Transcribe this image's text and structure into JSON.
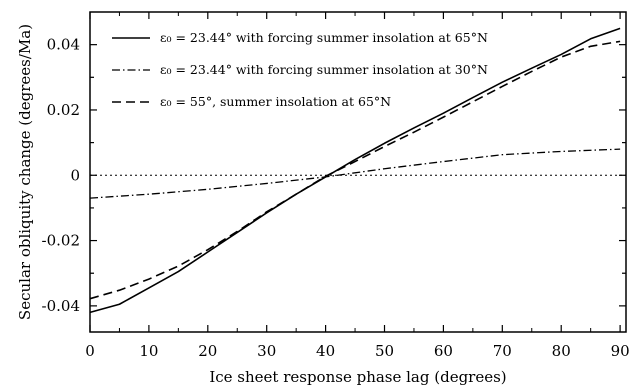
{
  "chart_data": {
    "type": "line",
    "xlabel": "Ice sheet response phase lag (degrees)",
    "ylabel": "Secular obliquity change (degrees/Ma)",
    "xlim": [
      0,
      91
    ],
    "ylim": [
      -0.048,
      0.05
    ],
    "xticks": [
      "0",
      "10",
      "20",
      "30",
      "40",
      "50",
      "60",
      "70",
      "80",
      "90"
    ],
    "yticks": [
      "-0.04",
      "-0.02",
      "0",
      "0.02",
      "0.04"
    ],
    "grid": false,
    "legend_position": "top-left",
    "series": [
      {
        "name": "ε₀ = 23.44° with forcing summer insolation at 65°N",
        "line_style": "solid",
        "x": [
          0,
          5,
          10,
          15,
          20,
          25,
          30,
          35,
          40,
          45,
          50,
          55,
          60,
          65,
          70,
          75,
          80,
          85,
          90
        ],
        "y": [
          -0.042,
          -0.0395,
          -0.0345,
          -0.0295,
          -0.0235,
          -0.0175,
          -0.0115,
          -0.0058,
          -0.0005,
          0.0048,
          0.0098,
          0.0145,
          0.019,
          0.0238,
          0.0285,
          0.0328,
          0.037,
          0.0418,
          0.045
        ]
      },
      {
        "name": "ε₀ = 23.44° with forcing summer insolation at 30°N",
        "line_style": "dash-dot",
        "x": [
          0,
          10,
          20,
          30,
          40,
          50,
          60,
          70,
          80,
          90
        ],
        "y": [
          -0.007,
          -0.0058,
          -0.0043,
          -0.0025,
          -0.0005,
          0.002,
          0.0042,
          0.0063,
          0.0073,
          0.008
        ]
      },
      {
        "name": "ε₀ = 55°, summer insolation at 65°N",
        "line_style": "dashed",
        "x": [
          0,
          5,
          10,
          15,
          20,
          25,
          30,
          35,
          40,
          45,
          50,
          55,
          60,
          65,
          70,
          75,
          80,
          85,
          90
        ],
        "y": [
          -0.0378,
          -0.0352,
          -0.0318,
          -0.0278,
          -0.0228,
          -0.0172,
          -0.0112,
          -0.0058,
          -0.0003,
          0.0042,
          0.0088,
          0.0132,
          0.0178,
          0.0225,
          0.0272,
          0.0318,
          0.0362,
          0.0395,
          0.041
        ]
      }
    ],
    "reference_line": {
      "y": 0,
      "style": "dotted"
    }
  }
}
